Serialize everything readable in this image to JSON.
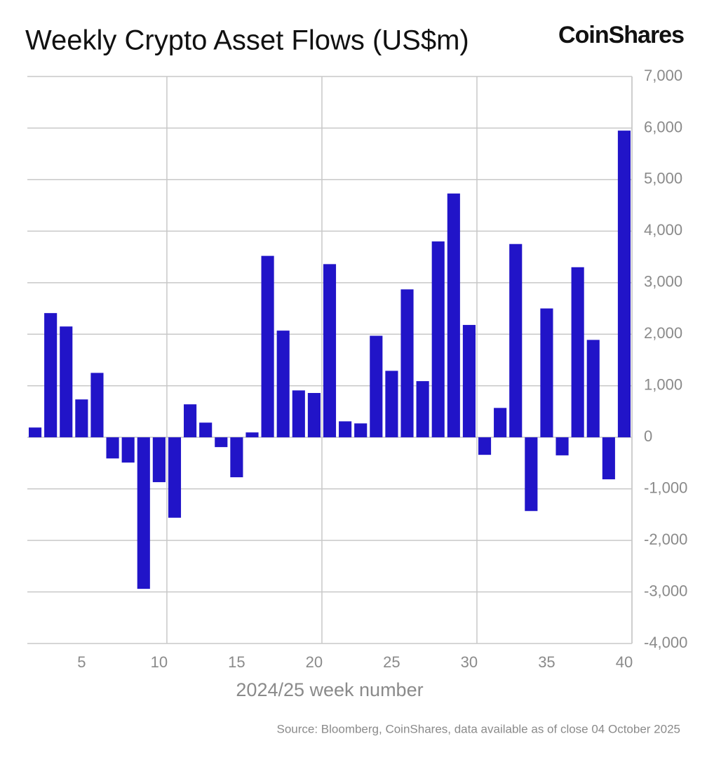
{
  "chart_data": {
    "type": "bar",
    "title": "Weekly Crypto Asset Flows (US$m)",
    "brand": "CoinShares",
    "x_label": "2024/25 week number",
    "source": "Source: Bloomberg, CoinShares, data available as of close 04 October 2025",
    "color": "#2114c8",
    "grid": true,
    "x": [
      2,
      3,
      4,
      5,
      6,
      7,
      8,
      9,
      10,
      11,
      12,
      13,
      14,
      15,
      16,
      17,
      18,
      19,
      20,
      21,
      22,
      23,
      24,
      25,
      26,
      27,
      28,
      29,
      30,
      31,
      32,
      33,
      34,
      35,
      36,
      37,
      38,
      39,
      40
    ],
    "values": [
      190,
      2410,
      2150,
      735,
      1250,
      -410,
      -490,
      -2940,
      -870,
      -1560,
      640,
      285,
      -190,
      -775,
      95,
      3520,
      2070,
      910,
      860,
      3360,
      310,
      270,
      1970,
      1290,
      2870,
      1090,
      3800,
      4730,
      2180,
      -340,
      570,
      3750,
      -1430,
      2500,
      -350,
      3300,
      1890,
      -815,
      5950
    ],
    "xlim": [
      1.5,
      40.5
    ],
    "xticks": [
      5,
      10,
      15,
      20,
      25,
      30,
      35,
      40
    ],
    "ylim": [
      -4000,
      7000
    ],
    "yticks": [
      {
        "value": -4000,
        "label": "-4,000"
      },
      {
        "value": -3000,
        "label": "-3,000"
      },
      {
        "value": -2000,
        "label": "-2,000"
      },
      {
        "value": -1000,
        "label": "-1,000"
      },
      0,
      {
        "value": 1000,
        "label": "1,000"
      },
      {
        "value": 2000,
        "label": "2,000"
      },
      {
        "value": 3000,
        "label": "3,000"
      },
      {
        "value": 4000,
        "label": "4,000"
      },
      {
        "value": 5000,
        "label": "5,000"
      },
      {
        "value": 6000,
        "label": "6,000"
      },
      {
        "value": 7000,
        "label": "7,000"
      }
    ]
  }
}
